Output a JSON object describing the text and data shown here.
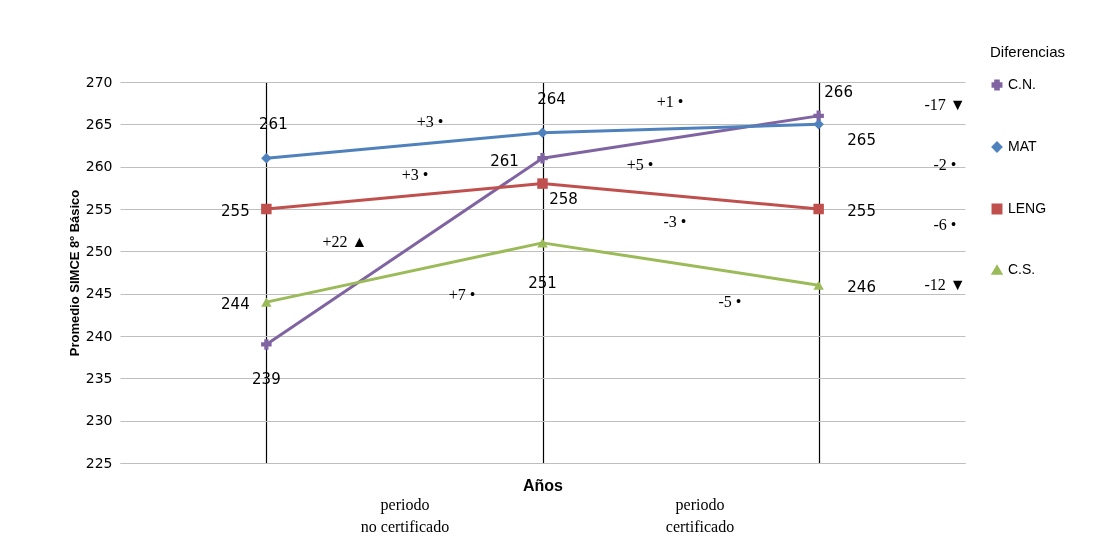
{
  "chart_data": {
    "type": "line",
    "xlabel": "Años",
    "ylabel": "Promedio SIMCE 8º Básico",
    "legend_title": "Diferencias",
    "categories": [
      null,
      null,
      null
    ],
    "series": [
      {
        "name": "C.N.",
        "color": "#8064a2",
        "marker": "cross",
        "values": [
          239,
          261,
          266
        ]
      },
      {
        "name": "MAT",
        "color": "#4f81bd",
        "marker": "diamond",
        "values": [
          261,
          264,
          265
        ]
      },
      {
        "name": "LENG",
        "color": "#c0504d",
        "marker": "square",
        "values": [
          255,
          258,
          255
        ]
      },
      {
        "name": "C.S.",
        "color": "#9bbb59",
        "marker": "triangle",
        "values": [
          244,
          251,
          246
        ]
      }
    ],
    "ylim": [
      225,
      270
    ],
    "yticks": [
      225,
      230,
      235,
      240,
      245,
      250,
      255,
      260,
      265,
      270
    ],
    "grid": true,
    "legend": "right",
    "data_labels": true,
    "annotations": [
      "+3 •",
      "+1 •",
      "+3 •",
      "+5 •",
      "+22 ▲",
      "-3 •",
      "+7 •",
      "-5 •",
      "-17 ▼",
      "-2 •",
      "-6 •",
      "-12 ▼",
      "periodo no certificado",
      "periodo certificado"
    ]
  }
}
